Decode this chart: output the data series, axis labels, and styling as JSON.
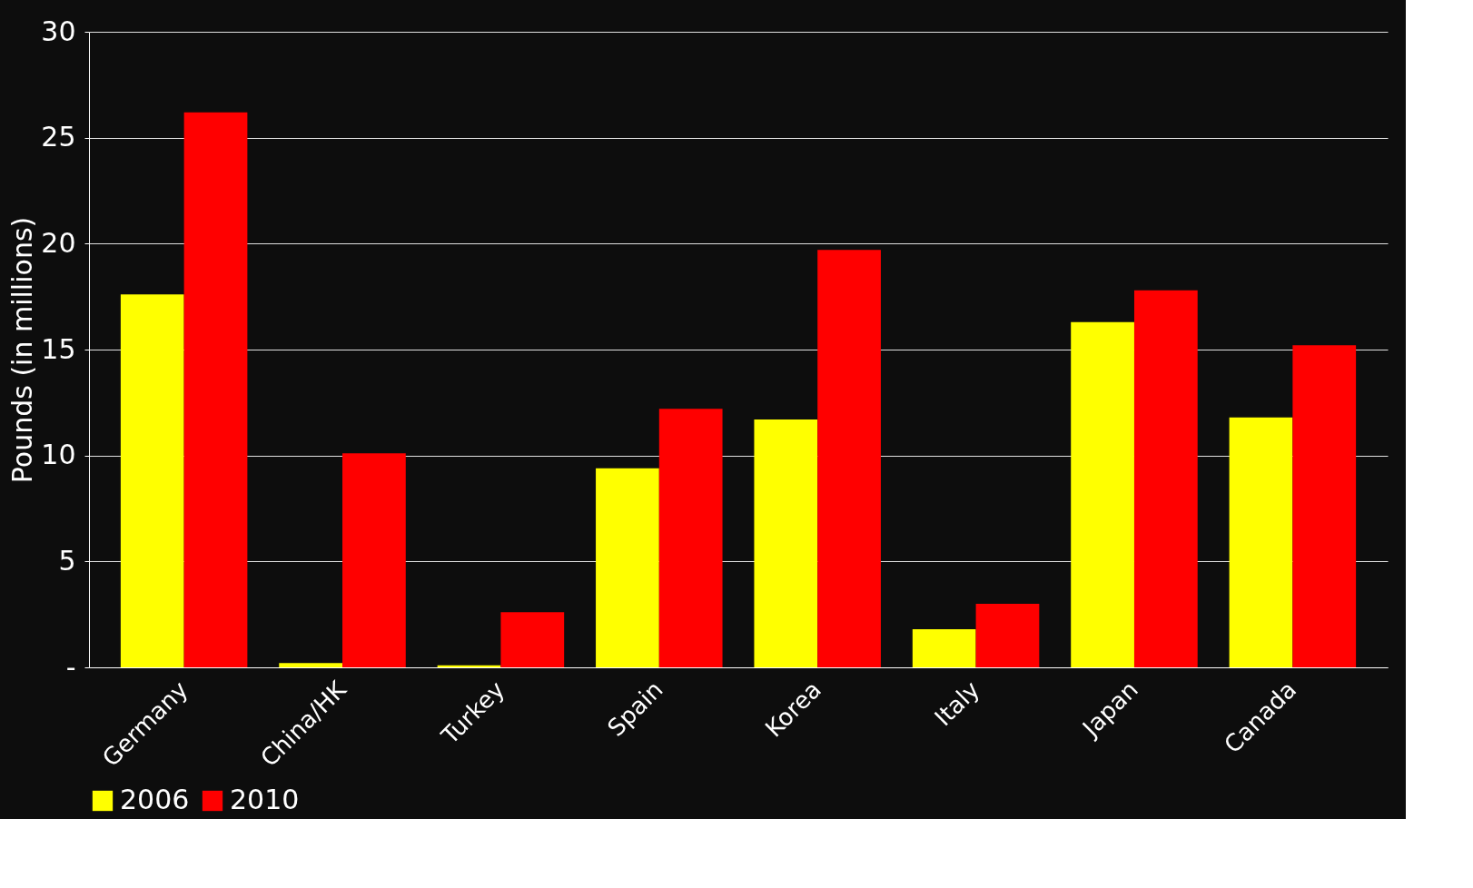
{
  "chart_data": {
    "type": "bar",
    "ylabel": "Pounds (in millions)",
    "categories": [
      "Germany",
      "China/HK",
      "Turkey",
      "Spain",
      "Korea",
      "Italy",
      "Japan",
      "Canada"
    ],
    "series": [
      {
        "name": "2006",
        "color": "#ffff00",
        "values": [
          17.6,
          0.2,
          0.1,
          9.4,
          11.7,
          1.8,
          16.3,
          11.8
        ]
      },
      {
        "name": "2010",
        "color": "#ff0000",
        "values": [
          26.2,
          10.1,
          2.6,
          12.2,
          19.7,
          3.0,
          17.8,
          15.2
        ]
      }
    ],
    "ylim": [
      0,
      30
    ],
    "yticks": [
      {
        "value": 0,
        "label": "-"
      },
      5,
      10,
      15,
      20,
      25,
      30
    ],
    "grid": "y",
    "legend": "bottom"
  }
}
